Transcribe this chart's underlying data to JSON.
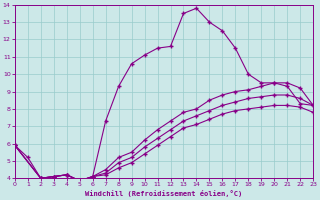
{
  "xlabel": "Windchill (Refroidissement éolien,°C)",
  "bg_color": "#cce8e8",
  "grid_color": "#99cccc",
  "line_color": "#880088",
  "xlim": [
    0,
    23
  ],
  "ylim": [
    4,
    14
  ],
  "xticks": [
    0,
    1,
    2,
    3,
    4,
    5,
    6,
    7,
    8,
    9,
    10,
    11,
    12,
    13,
    14,
    15,
    16,
    17,
    18,
    19,
    20,
    21,
    22,
    23
  ],
  "yticks": [
    4,
    5,
    6,
    7,
    8,
    9,
    10,
    11,
    12,
    13,
    14
  ],
  "line1_x": [
    0,
    1,
    2,
    3,
    4,
    5,
    6,
    7,
    8,
    9,
    10,
    11,
    12,
    13,
    14,
    15,
    16,
    17,
    18,
    19,
    20,
    21,
    22,
    23
  ],
  "line1_y": [
    5.9,
    5.2,
    4.0,
    4.1,
    4.2,
    3.85,
    4.1,
    7.3,
    9.3,
    10.6,
    11.1,
    11.5,
    11.6,
    13.5,
    13.8,
    13.0,
    12.5,
    11.5,
    10.0,
    9.5,
    9.5,
    9.3,
    8.3,
    8.2
  ],
  "line2_x": [
    0,
    2,
    3,
    4,
    5,
    6,
    7,
    8,
    9,
    10,
    11,
    12,
    13,
    14,
    15,
    16,
    17,
    18,
    19,
    20,
    21,
    22,
    23
  ],
  "line2_y": [
    5.9,
    4.0,
    4.1,
    4.2,
    3.85,
    4.1,
    4.5,
    5.2,
    5.5,
    6.2,
    6.8,
    7.3,
    7.8,
    8.0,
    8.5,
    8.8,
    9.0,
    9.1,
    9.3,
    9.5,
    9.5,
    9.2,
    8.2
  ],
  "line3_x": [
    0,
    2,
    3,
    4,
    5,
    6,
    7,
    8,
    9,
    10,
    11,
    12,
    13,
    14,
    15,
    16,
    17,
    18,
    19,
    20,
    21,
    22,
    23
  ],
  "line3_y": [
    5.9,
    4.0,
    4.1,
    4.2,
    3.85,
    4.1,
    4.3,
    4.9,
    5.2,
    5.8,
    6.3,
    6.8,
    7.3,
    7.6,
    7.9,
    8.2,
    8.4,
    8.6,
    8.7,
    8.8,
    8.8,
    8.6,
    8.2
  ],
  "line4_x": [
    0,
    2,
    3,
    4,
    5,
    6,
    7,
    8,
    9,
    10,
    11,
    12,
    13,
    14,
    15,
    16,
    17,
    18,
    19,
    20,
    21,
    22,
    23
  ],
  "line4_y": [
    5.9,
    4.0,
    4.1,
    4.2,
    3.85,
    4.1,
    4.2,
    4.6,
    4.9,
    5.4,
    5.9,
    6.4,
    6.9,
    7.1,
    7.4,
    7.7,
    7.9,
    8.0,
    8.1,
    8.2,
    8.2,
    8.1,
    7.8
  ]
}
